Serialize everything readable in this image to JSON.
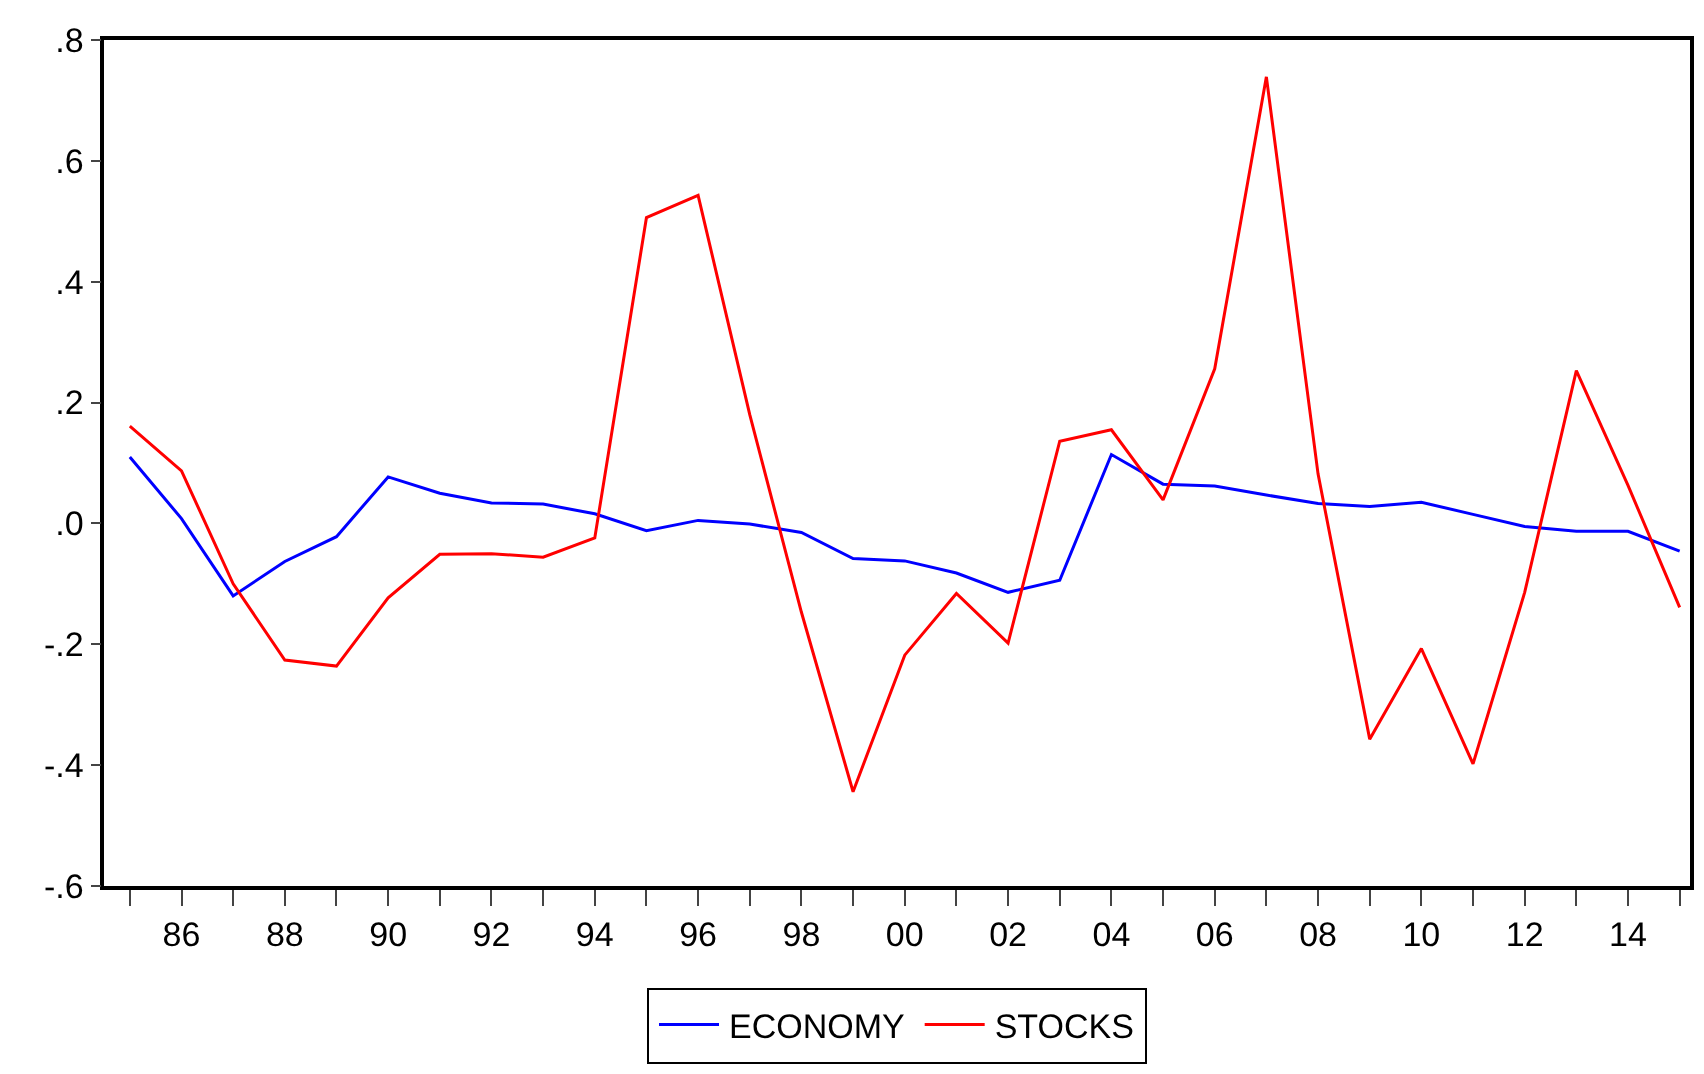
{
  "chart_data": {
    "type": "line",
    "x": [
      1985,
      1986,
      1987,
      1988,
      1989,
      1990,
      1991,
      1992,
      1993,
      1994,
      1995,
      1996,
      1997,
      1998,
      1999,
      2000,
      2001,
      2002,
      2003,
      2004,
      2005,
      2006,
      2007,
      2008,
      2009,
      2010,
      2011,
      2012,
      2013,
      2014,
      2015
    ],
    "series": [
      {
        "name": "ECONOMY",
        "color": "#0000ff",
        "values": [
          0.11,
          0.008,
          -0.12,
          -0.063,
          -0.022,
          0.077,
          0.05,
          0.034,
          0.032,
          0.016,
          -0.012,
          0.005,
          -0.001,
          -0.015,
          -0.058,
          -0.062,
          -0.082,
          -0.114,
          -0.094,
          0.114,
          0.065,
          0.062,
          0.047,
          0.033,
          0.028,
          0.035,
          0.015,
          -0.005,
          -0.013,
          -0.013,
          -0.046
        ]
      },
      {
        "name": "STOCKS",
        "color": "#ff0000",
        "values": [
          0.161,
          0.087,
          -0.1,
          -0.226,
          -0.236,
          -0.123,
          -0.051,
          -0.05,
          -0.056,
          -0.024,
          0.506,
          0.543,
          0.18,
          -0.147,
          -0.444,
          -0.218,
          -0.116,
          -0.198,
          0.136,
          0.155,
          0.039,
          0.256,
          0.739,
          0.082,
          -0.357,
          -0.207,
          -0.398,
          -0.114,
          0.253,
          0.063,
          -0.139
        ]
      }
    ],
    "xlim": [
      1984.5,
      2015.2
    ],
    "xticks": [
      {
        "value": 1985,
        "label": null
      },
      {
        "value": 1986,
        "label": "86"
      },
      {
        "value": 1987,
        "label": null
      },
      {
        "value": 1988,
        "label": "88"
      },
      {
        "value": 1989,
        "label": null
      },
      {
        "value": 1990,
        "label": "90"
      },
      {
        "value": 1991,
        "label": null
      },
      {
        "value": 1992,
        "label": "92"
      },
      {
        "value": 1993,
        "label": null
      },
      {
        "value": 1994,
        "label": "94"
      },
      {
        "value": 1995,
        "label": null
      },
      {
        "value": 1996,
        "label": "96"
      },
      {
        "value": 1997,
        "label": null
      },
      {
        "value": 1998,
        "label": "98"
      },
      {
        "value": 1999,
        "label": null
      },
      {
        "value": 2000,
        "label": "00"
      },
      {
        "value": 2001,
        "label": null
      },
      {
        "value": 2002,
        "label": "02"
      },
      {
        "value": 2003,
        "label": null
      },
      {
        "value": 2004,
        "label": "04"
      },
      {
        "value": 2005,
        "label": null
      },
      {
        "value": 2006,
        "label": "06"
      },
      {
        "value": 2007,
        "label": null
      },
      {
        "value": 2008,
        "label": "08"
      },
      {
        "value": 2009,
        "label": null
      },
      {
        "value": 2010,
        "label": "10"
      },
      {
        "value": 2011,
        "label": null
      },
      {
        "value": 2012,
        "label": "12"
      },
      {
        "value": 2013,
        "label": null
      },
      {
        "value": 2014,
        "label": "14"
      },
      {
        "value": 2015,
        "label": null
      }
    ],
    "ylim": [
      -0.6,
      0.8
    ],
    "yticks": [
      {
        "value": -0.6,
        "label": "-.6"
      },
      {
        "value": -0.4,
        "label": "-.4"
      },
      {
        "value": -0.2,
        "label": "-.2"
      },
      {
        "value": 0,
        "label": ".0"
      },
      {
        "value": 0.2,
        "label": ".2"
      },
      {
        "value": 0.4,
        "label": ".4"
      },
      {
        "value": 0.6,
        "label": ".6"
      },
      {
        "value": 0.8,
        "label": ".8"
      }
    ],
    "legend": "bottom",
    "marker": "none",
    "line_style": "solid"
  }
}
